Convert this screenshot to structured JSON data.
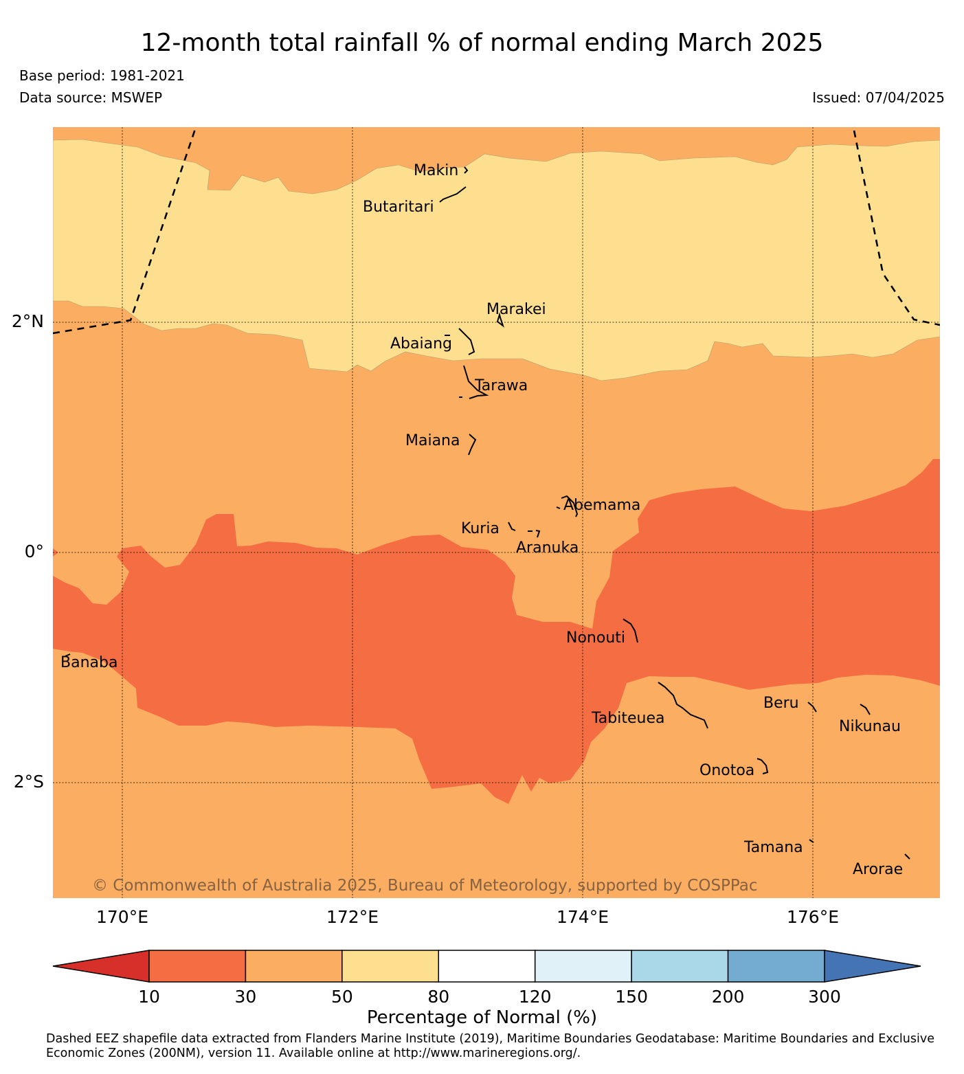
{
  "title": "12-month total rainfall % of normal ending March 2025",
  "base_period": "Base period: 1981-2021",
  "data_source": "Data source: MSWEP",
  "issued": "Issued: 07/04/2025",
  "axes": {
    "lon_labels": [
      "170°E",
      "172°E",
      "174°E",
      "176°E"
    ],
    "lat_labels": [
      "2°N",
      "0°",
      "2°S"
    ]
  },
  "places": [
    {
      "name": "Makin"
    },
    {
      "name": "Butaritari"
    },
    {
      "name": "Marakei"
    },
    {
      "name": "Abaiang"
    },
    {
      "name": "Tarawa"
    },
    {
      "name": "Maiana"
    },
    {
      "name": "Abemama"
    },
    {
      "name": "Kuria"
    },
    {
      "name": "Aranuka"
    },
    {
      "name": "Nonouti"
    },
    {
      "name": "Banaba"
    },
    {
      "name": "Beru"
    },
    {
      "name": "Tabiteuea"
    },
    {
      "name": "Nikunau"
    },
    {
      "name": "Onotoa"
    },
    {
      "name": "Tamana"
    },
    {
      "name": "Arorae"
    }
  ],
  "copyright": "© Commonwealth of Australia 2025, Bureau of Meteorology, supported by COSPPac",
  "colorbar": {
    "label": "Percentage of Normal (%)",
    "ticks": [
      "10",
      "30",
      "50",
      "80",
      "120",
      "150",
      "200",
      "300"
    ],
    "bins": [
      {
        "range": "<10",
        "color": "#d7302a"
      },
      {
        "range": "10-30",
        "color": "#f46d43"
      },
      {
        "range": "30-50",
        "color": "#fbad61"
      },
      {
        "range": "50-80",
        "color": "#fddf8f"
      },
      {
        "range": "80-120",
        "color": "#ffffff"
      },
      {
        "range": "120-150",
        "color": "#e0f2f8"
      },
      {
        "range": "150-200",
        "color": "#abd8e8"
      },
      {
        "range": "200-300",
        "color": "#74abd0"
      },
      {
        "range": ">300",
        "color": "#4474b3"
      }
    ]
  },
  "footnote": "Dashed EEZ shapefile data extracted from Flanders Marine Institute (2019), Maritime Boundaries Geodatabase: Maritime Boundaries and Exclusive Economic Zones (200NM), version 11. Available online at http://www.marineregions.org/."
}
